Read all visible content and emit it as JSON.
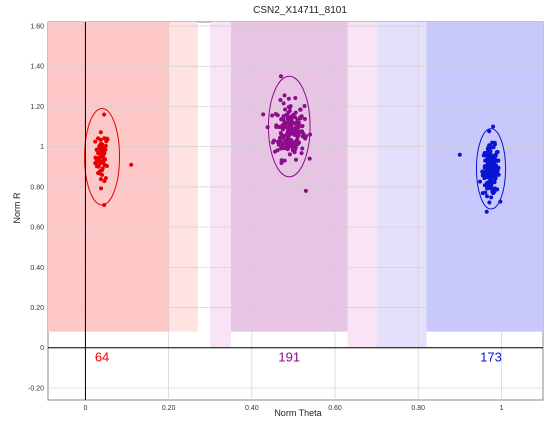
{
  "chart_data": {
    "type": "scatter",
    "title": "CSN2_X14711_8101",
    "xlabel": "Norm Theta",
    "ylabel": "Norm R",
    "xlim": [
      -0.09,
      1.1
    ],
    "ylim": [
      -0.26,
      1.62
    ],
    "xticks": [
      {
        "v": 0.0,
        "label": "0"
      },
      {
        "v": 0.2,
        "label": "0.20"
      },
      {
        "v": 0.4,
        "label": "0.40"
      },
      {
        "v": 0.6,
        "label": "0.60"
      },
      {
        "v": 0.8,
        "label": "0.80"
      },
      {
        "v": 1.0,
        "label": "1"
      }
    ],
    "yticks": [
      {
        "v": -0.2,
        "label": "-0.20"
      },
      {
        "v": 0.0,
        "label": "0"
      },
      {
        "v": 0.2,
        "label": "0.20"
      },
      {
        "v": 0.4,
        "label": "0.40"
      },
      {
        "v": 0.6,
        "label": "0.60"
      },
      {
        "v": 0.8,
        "label": "0.80"
      },
      {
        "v": 1.0,
        "label": "1"
      },
      {
        "v": 1.2,
        "label": "1.20"
      },
      {
        "v": 1.4,
        "label": "1.40"
      },
      {
        "v": 1.6,
        "label": "1.60"
      }
    ],
    "grid": true,
    "regions": [
      {
        "color": "#ffc8c8",
        "x0": -0.09,
        "x1": 0.2,
        "r0": 0.08
      },
      {
        "color": "#ffe3e3",
        "x0": 0.2,
        "x1": 0.27,
        "r0": 0.08
      },
      {
        "color": "#f8e4f4",
        "x0": 0.3,
        "x1": 0.35,
        "r0": 0.0
      },
      {
        "color": "#e8c4e4",
        "x0": 0.35,
        "x1": 0.63,
        "r0": 0.08
      },
      {
        "color": "#f8e4f4",
        "x0": 0.63,
        "x1": 0.7,
        "r0": 0.0
      },
      {
        "color": "#e4e0fc",
        "x0": 0.7,
        "x1": 0.82,
        "r0": 0.0
      },
      {
        "color": "#c8c8fc",
        "x0": 0.82,
        "x1": 1.1,
        "r0": 0.08
      }
    ],
    "clusters": [
      {
        "color": "#e60000",
        "count": "64",
        "cx": 0.04,
        "cy": 0.95,
        "sx": 0.008,
        "sy": 0.06,
        "n": 64,
        "ellipse": {
          "cx": 0.04,
          "cy": 0.95,
          "rx": 0.042,
          "ry": 0.24
        },
        "outliers": [
          [
            0.11,
            0.91
          ],
          [
            0.045,
            0.71
          ],
          [
            0.045,
            1.16
          ]
        ]
      },
      {
        "color": "#8c0c8c",
        "count": "191",
        "cx": 0.49,
        "cy": 1.08,
        "sx": 0.018,
        "sy": 0.07,
        "n": 191,
        "ellipse": {
          "cx": 0.49,
          "cy": 1.1,
          "rx": 0.05,
          "ry": 0.25
        },
        "outliers": [
          [
            0.53,
            0.78
          ],
          [
            0.47,
            1.35
          ]
        ]
      },
      {
        "color": "#0a14d2",
        "count": "173",
        "cx": 0.975,
        "cy": 0.88,
        "sx": 0.01,
        "sy": 0.06,
        "n": 173,
        "ellipse": {
          "cx": 0.975,
          "cy": 0.89,
          "rx": 0.035,
          "ry": 0.2
        },
        "outliers": [
          [
            0.9,
            0.96
          ],
          [
            0.98,
            1.1
          ]
        ]
      }
    ],
    "axis_colors": {
      "grid": "#d0d0d0",
      "axes": "#000000",
      "text": "#333333"
    }
  }
}
